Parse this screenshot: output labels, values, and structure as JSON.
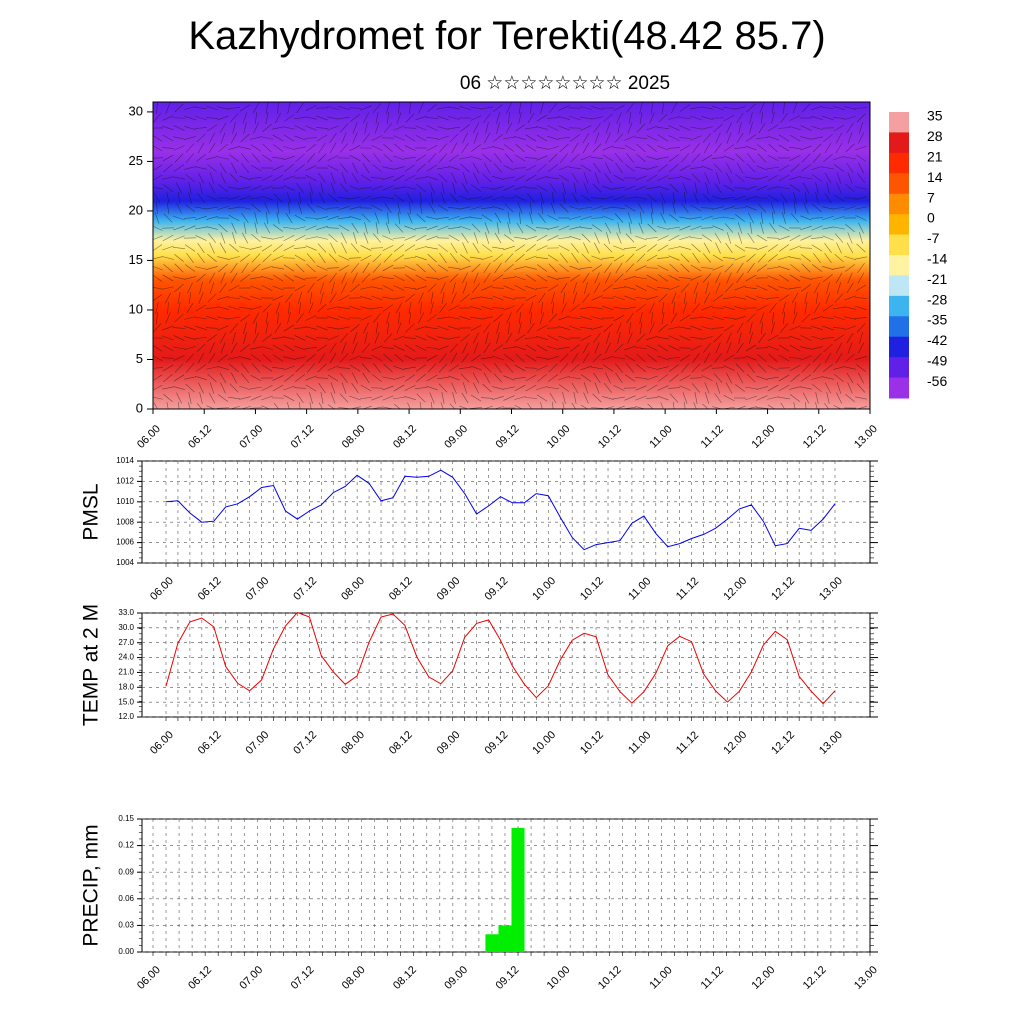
{
  "header": {
    "title": "Kazhydromet for Terekti(48.42 85.7)",
    "subtitle": "06 ☆☆☆☆☆☆☆☆ 2025"
  },
  "time_labels": [
    "06.00",
    "06.12",
    "07.00",
    "07.12",
    "08.00",
    "08.12",
    "09.00",
    "09.12",
    "10.00",
    "10.12",
    "11.00",
    "11.12",
    "12.00",
    "12.12",
    "13.00"
  ],
  "chart_data": [
    {
      "type": "heatmap",
      "title": "",
      "xlabel": "",
      "ylabel": "",
      "y_ticks": [
        0,
        5,
        10,
        15,
        20,
        25,
        30
      ],
      "ylim": [
        0,
        31
      ],
      "colorbar": {
        "labels": [
          "35",
          "28",
          "21",
          "14",
          "7",
          "0",
          "-7",
          "-14",
          "-21",
          "-28",
          "-35",
          "-42",
          "-49",
          "-56"
        ],
        "colors": [
          "#f4a0a0",
          "#e41a1a",
          "#ff2a00",
          "#ff5500",
          "#ff8c00",
          "#ffb400",
          "#ffe04a",
          "#fff2a0",
          "#bfe6f5",
          "#3cb4f0",
          "#2070e8",
          "#2020e0",
          "#6020e8",
          "#9a30e8"
        ]
      },
      "profile": [
        {
          "level": 0,
          "value": 33
        },
        {
          "level": 5,
          "value": 28
        },
        {
          "level": 10,
          "value": 20
        },
        {
          "level": 13,
          "value": 14
        },
        {
          "level": 15.5,
          "value": -7
        },
        {
          "level": 17,
          "value": -16
        },
        {
          "level": 19,
          "value": -28
        },
        {
          "level": 21,
          "value": -40
        },
        {
          "level": 23,
          "value": -52
        },
        {
          "level": 26,
          "value": -58
        },
        {
          "level": 31,
          "value": -52
        }
      ]
    },
    {
      "type": "line",
      "ylabel": "PMSL",
      "ylim": [
        1004,
        1014
      ],
      "y_ticks": [
        "1004",
        "1006",
        "1008",
        "1010",
        "1012",
        "1014"
      ],
      "color": "#0000ee",
      "values": [
        1010.0,
        1010.1,
        1008.9,
        1008.0,
        1008.1,
        1009.5,
        1009.8,
        1010.5,
        1011.4,
        1011.6,
        1009.1,
        1008.3,
        1009.1,
        1009.7,
        1010.9,
        1011.5,
        1012.6,
        1011.8,
        1010.1,
        1010.4,
        1012.5,
        1012.4,
        1012.5,
        1013.1,
        1012.4,
        1010.8,
        1008.8,
        1009.6,
        1010.5,
        1009.9,
        1009.9,
        1010.8,
        1010.6,
        1008.5,
        1006.5,
        1005.3,
        1005.8,
        1006.0,
        1006.2,
        1007.9,
        1008.6,
        1006.9,
        1005.6,
        1005.9,
        1006.4,
        1006.8,
        1007.4,
        1008.3,
        1009.3,
        1009.7,
        1008.1,
        1005.7,
        1005.9,
        1007.4,
        1007.2,
        1008.3,
        1009.8
      ]
    },
    {
      "type": "line",
      "ylabel": "TEMP at 2 M",
      "ylim": [
        12,
        33
      ],
      "y_ticks": [
        "12.0",
        "15.0",
        "18.0",
        "21.0",
        "24.0",
        "27.0",
        "30.0",
        "33.0"
      ],
      "color": "#ee0000",
      "values": [
        18.2,
        26.9,
        31.2,
        32.0,
        30.2,
        22.2,
        18.8,
        17.3,
        19.5,
        25.8,
        30.4,
        33.1,
        32.2,
        24.4,
        21.1,
        18.6,
        20.3,
        27.1,
        32.2,
        32.8,
        30.5,
        24.1,
        20.1,
        18.7,
        21.3,
        28.1,
        30.9,
        31.6,
        27.5,
        22.3,
        18.6,
        15.9,
        18.3,
        23.5,
        27.5,
        28.9,
        28.2,
        20.5,
        17.1,
        14.8,
        17.1,
        20.8,
        26.4,
        28.3,
        27.2,
        20.7,
        17.3,
        15.0,
        17.2,
        21.1,
        26.5,
        29.3,
        27.6,
        20.2,
        17.2,
        14.7,
        17.3
      ]
    },
    {
      "type": "bar",
      "ylabel": "PRECIP, mm",
      "ylim": [
        0,
        0.15
      ],
      "y_ticks": [
        "0.00",
        "0.03",
        "0.06",
        "0.09",
        "0.12",
        "0.15"
      ],
      "color": "#00ee00",
      "values": [
        0,
        0,
        0,
        0,
        0,
        0,
        0,
        0,
        0,
        0,
        0,
        0,
        0,
        0,
        0,
        0,
        0,
        0,
        0,
        0,
        0,
        0,
        0,
        0,
        0,
        0,
        0.02,
        0.03,
        0.14,
        0,
        0,
        0,
        0,
        0,
        0,
        0,
        0,
        0,
        0,
        0,
        0,
        0,
        0,
        0,
        0,
        0,
        0,
        0,
        0,
        0,
        0,
        0,
        0,
        0,
        0,
        0
      ]
    }
  ]
}
